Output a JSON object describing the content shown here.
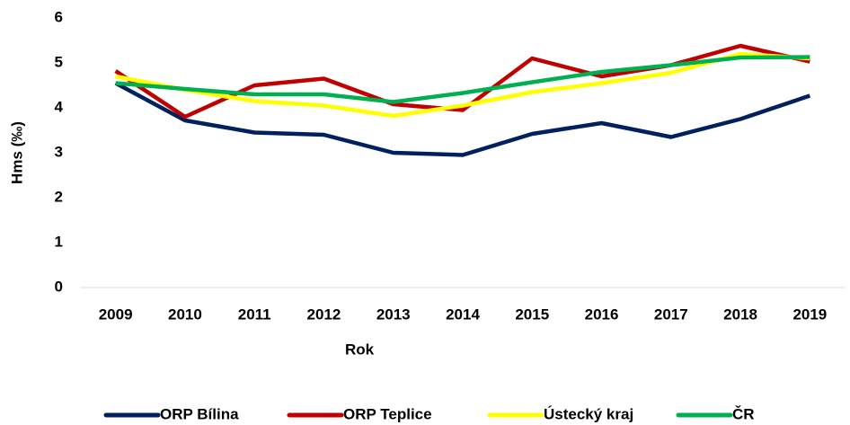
{
  "chart_data": {
    "type": "line",
    "x_label": "Rok",
    "y_label": "Hms (‰)",
    "categories": [
      "2009",
      "2010",
      "2011",
      "2012",
      "2013",
      "2014",
      "2015",
      "2016",
      "2017",
      "2018",
      "2019"
    ],
    "series": [
      {
        "name": "ORP Bílina",
        "color": "#002060",
        "values": [
          4.55,
          3.72,
          3.45,
          3.4,
          3.0,
          2.95,
          3.42,
          3.66,
          3.35,
          3.75,
          4.27
        ]
      },
      {
        "name": "ORP Teplice",
        "color": "#c00000",
        "values": [
          4.82,
          3.8,
          4.5,
          4.65,
          4.08,
          3.95,
          5.1,
          4.7,
          4.95,
          5.38,
          5.03
        ]
      },
      {
        "name": "Ústecký kraj",
        "color": "#ffff00",
        "values": [
          4.7,
          4.4,
          4.15,
          4.05,
          3.82,
          4.05,
          4.35,
          4.55,
          4.78,
          5.2,
          5.1
        ]
      },
      {
        "name": "ČR",
        "color": "#00b050",
        "values": [
          4.55,
          4.42,
          4.3,
          4.3,
          4.13,
          4.33,
          4.57,
          4.8,
          4.95,
          5.12,
          5.13
        ]
      }
    ],
    "ylim": [
      0,
      6
    ],
    "yticks": [
      0,
      1,
      2,
      3,
      4,
      5,
      6
    ],
    "grid": false,
    "legend": "bottom"
  }
}
